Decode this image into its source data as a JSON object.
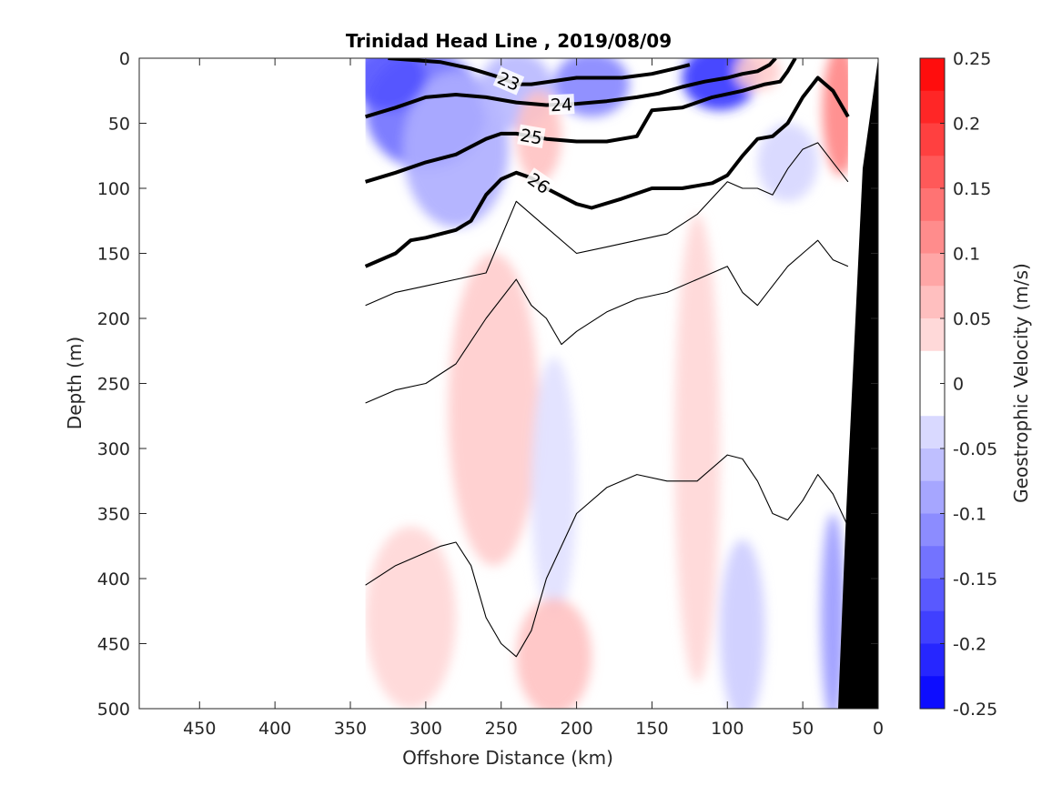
{
  "chart_data": {
    "type": "heatmap",
    "title": "Trinidad Head Line , 2019/08/09",
    "xlabel": "Offshore Distance (km)",
    "ylabel": "Depth (m)",
    "xlim": [
      490,
      0
    ],
    "ylim": [
      500,
      0
    ],
    "x_ticks": [
      "450",
      "400",
      "350",
      "300",
      "250",
      "200",
      "150",
      "100",
      "50",
      "0"
    ],
    "y_ticks": [
      "0",
      "50",
      "100",
      "150",
      "200",
      "250",
      "300",
      "350",
      "400",
      "450",
      "500"
    ],
    "colorbar": {
      "label": "Geostrophic Velocity (m/s)",
      "min": -0.25,
      "max": 0.25,
      "step": 0.025,
      "tick_labels": [
        "0.25",
        "0.2",
        "0.15",
        "0.1",
        "0.05",
        "0",
        "-0.05",
        "-0.1",
        "-0.15",
        "-0.2",
        "-0.25"
      ],
      "positive_color": "#ff0000",
      "negative_color": "#0000ff",
      "zero_color": "#ffffff"
    },
    "section_x_range": [
      340,
      20
    ],
    "velocity_patches": [
      {
        "x": 300,
        "y": 40,
        "rx": 40,
        "ry": 45,
        "v": -0.14
      },
      {
        "x": 280,
        "y": 70,
        "rx": 35,
        "ry": 60,
        "v": -0.08
      },
      {
        "x": 325,
        "y": 15,
        "rx": 25,
        "ry": 25,
        "v": -0.17
      },
      {
        "x": 240,
        "y": 25,
        "rx": 25,
        "ry": 30,
        "v": -0.07
      },
      {
        "x": 225,
        "y": 60,
        "rx": 15,
        "ry": 35,
        "v": 0.06
      },
      {
        "x": 190,
        "y": 20,
        "rx": 25,
        "ry": 25,
        "v": -0.12
      },
      {
        "x": 105,
        "y": 15,
        "rx": 25,
        "ry": 25,
        "v": -0.2
      },
      {
        "x": 80,
        "y": 10,
        "rx": 15,
        "ry": 15,
        "v": 0.05
      },
      {
        "x": 25,
        "y": 40,
        "rx": 12,
        "ry": 50,
        "v": 0.12
      },
      {
        "x": 60,
        "y": 80,
        "rx": 20,
        "ry": 30,
        "v": -0.04
      },
      {
        "x": 255,
        "y": 270,
        "rx": 30,
        "ry": 120,
        "v": 0.05
      },
      {
        "x": 215,
        "y": 330,
        "rx": 15,
        "ry": 100,
        "v": -0.03
      },
      {
        "x": 120,
        "y": 300,
        "rx": 15,
        "ry": 180,
        "v": 0.04
      },
      {
        "x": 310,
        "y": 430,
        "rx": 30,
        "ry": 70,
        "v": 0.04
      },
      {
        "x": 215,
        "y": 460,
        "rx": 25,
        "ry": 45,
        "v": 0.06
      },
      {
        "x": 90,
        "y": 440,
        "rx": 15,
        "ry": 70,
        "v": -0.05
      },
      {
        "x": 30,
        "y": 430,
        "rx": 8,
        "ry": 80,
        "v": -0.1
      }
    ],
    "isopycnals": [
      {
        "sigma": 23,
        "labeled": true,
        "label": "23",
        "bold": true,
        "x": [
          325,
          290,
          270,
          250,
          240,
          230,
          200,
          170,
          150,
          135,
          125
        ],
        "y": [
          0,
          3,
          8,
          15,
          20,
          20,
          15,
          15,
          12,
          8,
          5
        ]
      },
      {
        "sigma": 24,
        "labeled": true,
        "label": "24",
        "bold": true,
        "x": [
          340,
          320,
          300,
          280,
          260,
          240,
          220,
          200,
          180,
          160,
          145,
          130,
          115,
          100,
          90,
          80,
          72,
          68
        ],
        "y": [
          45,
          38,
          30,
          28,
          30,
          34,
          36,
          35,
          33,
          30,
          27,
          22,
          18,
          15,
          12,
          10,
          5,
          0
        ]
      },
      {
        "sigma": 25,
        "labeled": true,
        "label": "25",
        "bold": true,
        "x": [
          340,
          320,
          300,
          280,
          260,
          250,
          240,
          220,
          200,
          180,
          160,
          150,
          130,
          110,
          90,
          75,
          65,
          60,
          55
        ],
        "y": [
          95,
          88,
          80,
          74,
          62,
          58,
          58,
          62,
          64,
          64,
          60,
          40,
          38,
          30,
          25,
          20,
          18,
          10,
          0
        ]
      },
      {
        "sigma": 26,
        "labeled": true,
        "label": "26",
        "bold": true,
        "x": [
          340,
          320,
          310,
          300,
          280,
          270,
          260,
          250,
          240,
          230,
          220,
          200,
          190,
          170,
          150,
          130,
          110,
          100,
          90,
          80,
          70,
          60,
          50,
          40,
          30,
          20
        ],
        "y": [
          160,
          150,
          140,
          138,
          132,
          125,
          105,
          93,
          88,
          92,
          100,
          112,
          115,
          108,
          100,
          100,
          96,
          90,
          75,
          62,
          60,
          50,
          30,
          15,
          25,
          45
        ]
      },
      {
        "sigma": 26.3,
        "labeled": false,
        "label": "",
        "bold": false,
        "x": [
          340,
          320,
          300,
          280,
          260,
          240,
          220,
          200,
          180,
          160,
          140,
          120,
          100,
          90,
          80,
          70,
          60,
          50,
          40,
          30,
          20
        ],
        "y": [
          190,
          180,
          175,
          170,
          165,
          110,
          130,
          150,
          145,
          140,
          135,
          120,
          95,
          100,
          100,
          105,
          85,
          70,
          65,
          80,
          95
        ]
      },
      {
        "sigma": 26.6,
        "labeled": false,
        "label": "",
        "bold": false,
        "x": [
          340,
          320,
          300,
          280,
          260,
          240,
          230,
          220,
          210,
          200,
          180,
          160,
          140,
          120,
          100,
          90,
          80,
          60,
          50,
          40,
          30,
          20
        ],
        "y": [
          265,
          255,
          250,
          235,
          200,
          170,
          190,
          200,
          220,
          210,
          195,
          185,
          180,
          170,
          160,
          180,
          190,
          160,
          150,
          140,
          155,
          160
        ]
      },
      {
        "sigma": 26.9,
        "labeled": false,
        "label": "",
        "bold": false,
        "x": [
          340,
          320,
          300,
          290,
          280,
          270,
          260,
          250,
          240,
          230,
          220,
          200,
          180,
          160,
          140,
          120,
          100,
          90,
          80,
          70,
          60,
          50,
          40,
          30,
          20
        ],
        "y": [
          405,
          390,
          380,
          375,
          372,
          390,
          430,
          450,
          460,
          440,
          400,
          350,
          330,
          320,
          325,
          325,
          305,
          308,
          325,
          350,
          355,
          340,
          320,
          335,
          360
        ]
      }
    ]
  }
}
